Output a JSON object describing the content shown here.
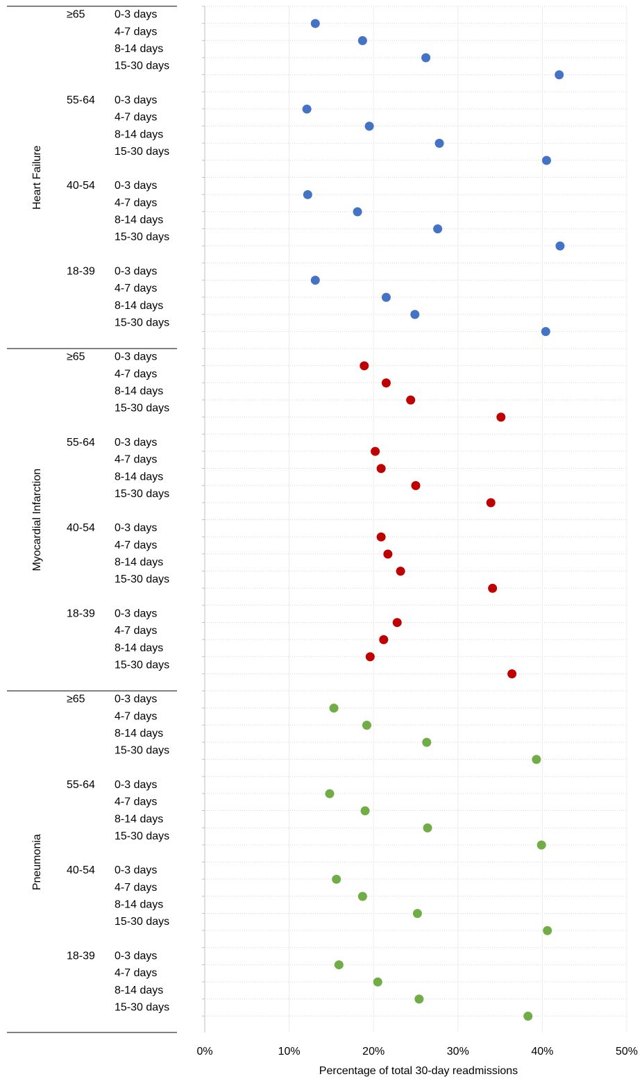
{
  "chart_data": {
    "type": "scatter",
    "xlabel": "Percentage of total 30-day readmissions",
    "xlim": [
      0,
      50
    ],
    "x_ticks": [
      "0%",
      "10%",
      "20%",
      "30%",
      "40%",
      "50%"
    ],
    "grid": true,
    "groups": [
      {
        "name": "Heart Failure",
        "color": "#4472C4",
        "age_bands": [
          {
            "age": "≥65",
            "rows": [
              {
                "day": "0-3 days",
                "value": 13.1
              },
              {
                "day": "4-7 days",
                "value": 18.7
              },
              {
                "day": "8-14 days",
                "value": 26.2
              },
              {
                "day": "15-30 days",
                "value": 42.0
              }
            ]
          },
          {
            "age": "55-64",
            "rows": [
              {
                "day": "0-3 days",
                "value": 12.1
              },
              {
                "day": "4-7 days",
                "value": 19.5
              },
              {
                "day": "8-14 days",
                "value": 27.8
              },
              {
                "day": "15-30 days",
                "value": 40.5
              }
            ]
          },
          {
            "age": "40-54",
            "rows": [
              {
                "day": "0-3 days",
                "value": 12.2
              },
              {
                "day": "4-7 days",
                "value": 18.1
              },
              {
                "day": "8-14 days",
                "value": 27.6
              },
              {
                "day": "15-30 days",
                "value": 42.1
              }
            ]
          },
          {
            "age": "18-39",
            "rows": [
              {
                "day": "0-3 days",
                "value": 13.1
              },
              {
                "day": "4-7 days",
                "value": 21.5
              },
              {
                "day": "8-14 days",
                "value": 24.9
              },
              {
                "day": "15-30 days",
                "value": 40.4
              }
            ]
          }
        ]
      },
      {
        "name": "Myocardial Infarction",
        "color": "#C00000",
        "age_bands": [
          {
            "age": "≥65",
            "rows": [
              {
                "day": "0-3 days",
                "value": 18.9
              },
              {
                "day": "4-7 days",
                "value": 21.5
              },
              {
                "day": "8-14 days",
                "value": 24.4
              },
              {
                "day": "15-30 days",
                "value": 35.1
              }
            ]
          },
          {
            "age": "55-64",
            "rows": [
              {
                "day": "0-3 days",
                "value": 20.2
              },
              {
                "day": "4-7 days",
                "value": 20.9
              },
              {
                "day": "8-14 days",
                "value": 25.0
              },
              {
                "day": "15-30 days",
                "value": 33.9
              }
            ]
          },
          {
            "age": "40-54",
            "rows": [
              {
                "day": "0-3 days",
                "value": 20.9
              },
              {
                "day": "4-7 days",
                "value": 21.7
              },
              {
                "day": "8-14 days",
                "value": 23.2
              },
              {
                "day": "15-30 days",
                "value": 34.1
              }
            ]
          },
          {
            "age": "18-39",
            "rows": [
              {
                "day": "0-3 days",
                "value": 22.8
              },
              {
                "day": "4-7 days",
                "value": 21.2
              },
              {
                "day": "8-14 days",
                "value": 19.6
              },
              {
                "day": "15-30 days",
                "value": 36.4
              }
            ]
          }
        ]
      },
      {
        "name": "Pneumonia",
        "color": "#70AD47",
        "age_bands": [
          {
            "age": "≥65",
            "rows": [
              {
                "day": "0-3 days",
                "value": 15.3
              },
              {
                "day": "4-7 days",
                "value": 19.2
              },
              {
                "day": "8-14 days",
                "value": 26.3
              },
              {
                "day": "15-30 days",
                "value": 39.3
              }
            ]
          },
          {
            "age": "55-64",
            "rows": [
              {
                "day": "0-3 days",
                "value": 14.8
              },
              {
                "day": "4-7 days",
                "value": 19.0
              },
              {
                "day": "8-14 days",
                "value": 26.4
              },
              {
                "day": "15-30 days",
                "value": 39.9
              }
            ]
          },
          {
            "age": "40-54",
            "rows": [
              {
                "day": "0-3 days",
                "value": 15.6
              },
              {
                "day": "4-7 days",
                "value": 18.7
              },
              {
                "day": "8-14 days",
                "value": 25.2
              },
              {
                "day": "15-30 days",
                "value": 40.6
              }
            ]
          },
          {
            "age": "18-39",
            "rows": [
              {
                "day": "0-3 days",
                "value": 15.9
              },
              {
                "day": "4-7 days",
                "value": 20.5
              },
              {
                "day": "8-14 days",
                "value": 25.4
              },
              {
                "day": "15-30 days",
                "value": 38.3
              }
            ]
          }
        ]
      }
    ]
  }
}
